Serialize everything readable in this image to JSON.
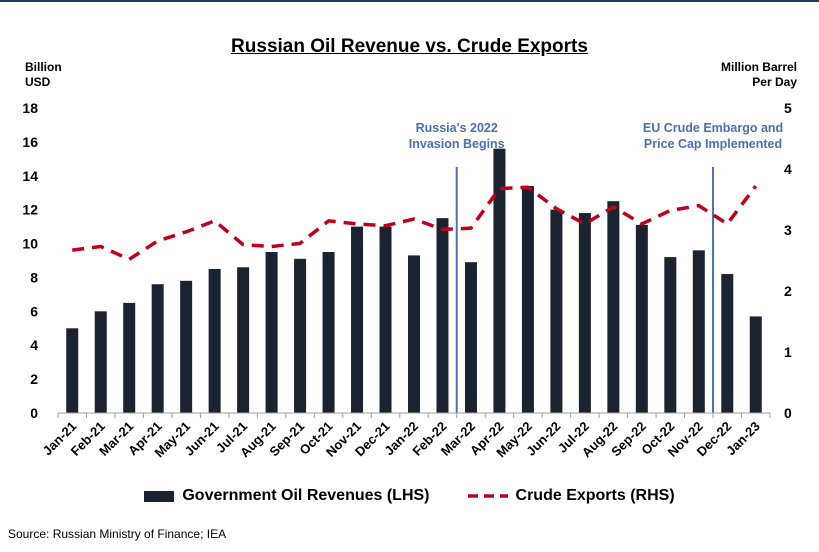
{
  "chart_data": {
    "type": "bar+line",
    "title": "Russian Oil Revenue vs. Crude Exports",
    "left_axis_title": [
      "Billion",
      "USD"
    ],
    "right_axis_title": [
      "Million Barrel",
      "Per Day"
    ],
    "categories": [
      "Jan-21",
      "Feb-21",
      "Mar-21",
      "Apr-21",
      "May-21",
      "Jun-21",
      "Jul-21",
      "Aug-21",
      "Sep-21",
      "Oct-21",
      "Nov-21",
      "Dec-21",
      "Jan-22",
      "Feb-22",
      "Mar-22",
      "Apr-22",
      "May-22",
      "Jun-22",
      "Jul-22",
      "Aug-22",
      "Sep-22",
      "Oct-22",
      "Nov-22",
      "Dec-22",
      "Jan-23"
    ],
    "ylim_left": [
      0,
      18
    ],
    "yticks_left": [
      "0",
      "2",
      "4",
      "6",
      "8",
      "10",
      "12",
      "14",
      "16",
      "18"
    ],
    "ylim_right": [
      0,
      5
    ],
    "yticks_right": [
      "0",
      "1",
      "2",
      "3",
      "4",
      "5"
    ],
    "series": [
      {
        "name": "Government Oil Revenues (LHS)",
        "type": "bar",
        "axis": "left",
        "color": "#1b2330",
        "values": [
          5.0,
          6.0,
          6.5,
          7.6,
          7.8,
          8.5,
          8.6,
          9.5,
          9.1,
          9.5,
          11.0,
          11.0,
          9.3,
          11.5,
          8.9,
          15.6,
          13.4,
          12.0,
          11.8,
          12.5,
          11.1,
          9.2,
          9.6,
          8.2,
          5.7
        ]
      },
      {
        "name": "Crude Exports (RHS)",
        "type": "line",
        "style": "dashed",
        "axis": "right",
        "color": "#c0001a",
        "values": [
          2.67,
          2.73,
          2.52,
          2.82,
          2.97,
          3.15,
          2.76,
          2.73,
          2.78,
          3.15,
          3.1,
          3.07,
          3.18,
          3.01,
          3.03,
          3.68,
          3.7,
          3.35,
          3.1,
          3.38,
          3.1,
          3.32,
          3.4,
          3.1,
          3.72
        ]
      }
    ],
    "annotations": [
      {
        "after": "Feb-22",
        "label": [
          "Russia's 2022",
          "Invasion Begins"
        ]
      },
      {
        "after": "Nov-22",
        "label": [
          "EU Crude Embargo and",
          "Price Cap Implemented"
        ]
      }
    ],
    "grid": false,
    "legend_position": "bottom"
  },
  "footer": {
    "source": "Source: Russian Ministry of Finance; IEA"
  }
}
